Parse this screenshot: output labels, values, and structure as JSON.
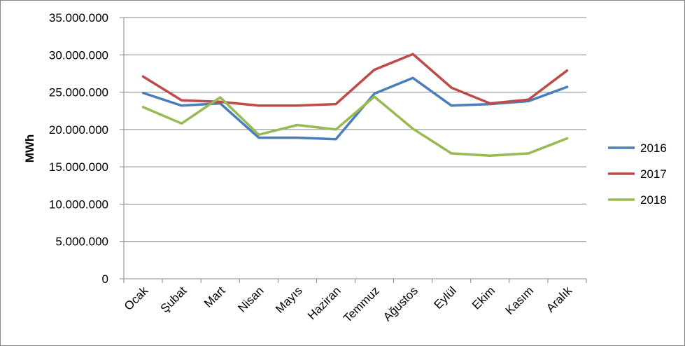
{
  "chart_data": {
    "type": "line",
    "title": "",
    "xlabel": "",
    "ylabel": "MWh",
    "ylim": [
      0,
      35000000
    ],
    "yticks": [
      0,
      5000000,
      10000000,
      15000000,
      20000000,
      25000000,
      30000000,
      35000000
    ],
    "ytick_labels": [
      "0",
      "5.000.000",
      "10.000.000",
      "15.000.000",
      "20.000.000",
      "25.000.000",
      "30.000.000",
      "35.000.000"
    ],
    "categories": [
      "Ocak",
      "Şubat",
      "Mart",
      "Nisan",
      "Mayıs",
      "Haziran",
      "Temmuz",
      "Ağustos",
      "Eylül",
      "Ekim",
      "Kasım",
      "Aralık"
    ],
    "grid": "horizontal",
    "legend_position": "right",
    "series": [
      {
        "name": "2016",
        "color": "#4a7ebb",
        "values": [
          24900000,
          23200000,
          23500000,
          18900000,
          18900000,
          18700000,
          24800000,
          26900000,
          23200000,
          23400000,
          23800000,
          25700000
        ]
      },
      {
        "name": "2017",
        "color": "#be4b48",
        "values": [
          27100000,
          23900000,
          23700000,
          23200000,
          23200000,
          23400000,
          28000000,
          30100000,
          25600000,
          23500000,
          24000000,
          27900000
        ]
      },
      {
        "name": "2018",
        "color": "#98b954",
        "values": [
          23000000,
          20800000,
          24300000,
          19300000,
          20600000,
          20000000,
          24400000,
          20100000,
          16800000,
          16500000,
          16800000,
          18800000
        ]
      }
    ]
  }
}
